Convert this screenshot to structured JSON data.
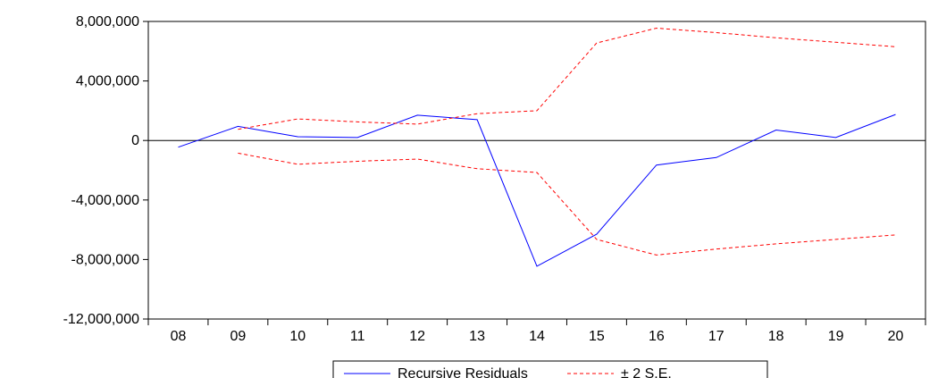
{
  "chart_data": {
    "type": "line",
    "categories": [
      "08",
      "09",
      "10",
      "11",
      "12",
      "13",
      "14",
      "15",
      "16",
      "17",
      "18",
      "19",
      "20"
    ],
    "ylim": [
      -12000000,
      8000000
    ],
    "yticks": [
      8000000,
      4000000,
      0,
      -4000000,
      -8000000,
      -12000000
    ],
    "ytick_labels": [
      "8,000,000",
      "4,000,000",
      "0",
      "-4,000,000",
      "-8,000,000",
      "-12,000,000"
    ],
    "zero_line": true,
    "grid": false,
    "legend_position": "bottom-center",
    "series": [
      {
        "name": "Recursive Residuals",
        "color": "#0000ff",
        "dash": "solid",
        "values": [
          -450000,
          950000,
          250000,
          200000,
          1700000,
          1400000,
          -8450000,
          -6300000,
          -1650000,
          -1150000,
          700000,
          200000,
          1750000
        ]
      },
      {
        "name": "± 2 S.E.",
        "color": "#ff0000",
        "dash": "dashed",
        "values": [
          null,
          750000,
          1450000,
          1250000,
          1100000,
          1800000,
          2000000,
          6550000,
          7550000,
          7250000,
          6900000,
          6600000,
          6300000
        ]
      },
      {
        "name": "",
        "color": "#ff0000",
        "dash": "dashed",
        "values": [
          null,
          -850000,
          -1600000,
          -1400000,
          -1250000,
          -1900000,
          -2150000,
          -6650000,
          -7700000,
          -7300000,
          -6950000,
          -6650000,
          -6350000
        ]
      }
    ]
  }
}
